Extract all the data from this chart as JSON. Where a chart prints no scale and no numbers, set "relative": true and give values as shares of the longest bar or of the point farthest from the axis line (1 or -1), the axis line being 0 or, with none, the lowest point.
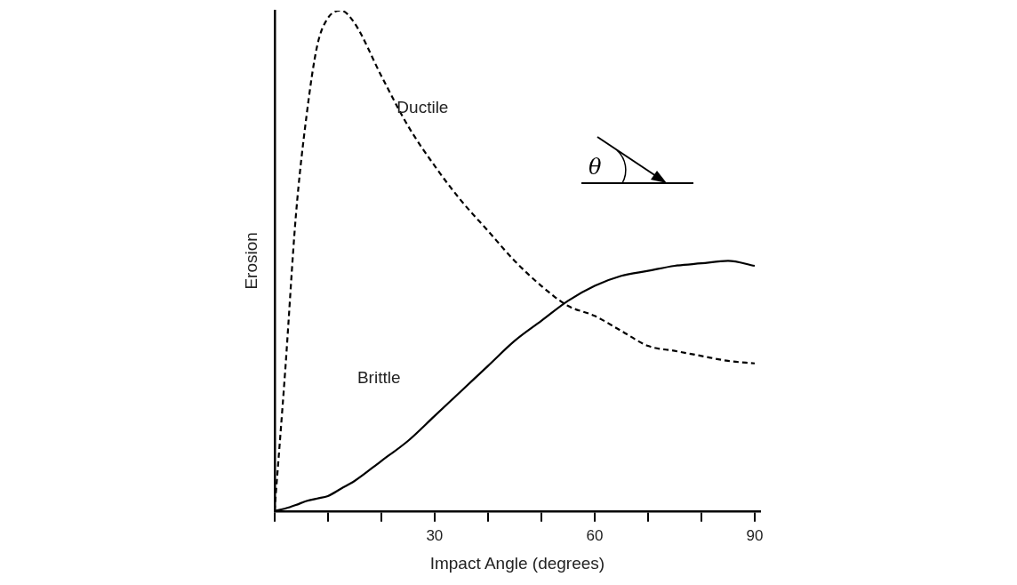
{
  "chart_data": {
    "type": "line",
    "relative": true,
    "xlabel": "Impact Angle (degrees)",
    "ylabel": "Erosion",
    "x": [
      0,
      2,
      4,
      6,
      8,
      10,
      12.5,
      15,
      20,
      25,
      30,
      35,
      40,
      45,
      50,
      55,
      60,
      65,
      70,
      75,
      80,
      85,
      90
    ],
    "xlim": [
      0,
      91
    ],
    "xticks": [
      {
        "value": 0,
        "label": null
      },
      {
        "value": 10,
        "label": null
      },
      {
        "value": 20,
        "label": null
      },
      30,
      {
        "value": 40,
        "label": null
      },
      {
        "value": 50,
        "label": null
      },
      60,
      {
        "value": 70,
        "label": null
      },
      {
        "value": 80,
        "label": null
      },
      90
    ],
    "series": [
      {
        "name": "Ductile",
        "color": "#000000",
        "line_style": "dashed",
        "values": [
          0,
          0.28,
          0.59,
          0.79,
          0.93,
          0.985,
          1,
          0.975,
          0.87,
          0.77,
          0.69,
          0.62,
          0.56,
          0.5,
          0.45,
          0.41,
          0.39,
          0.36,
          0.33,
          0.32,
          0.31,
          0.3,
          0.295
        ]
      },
      {
        "name": "Brittle",
        "color": "#000000",
        "line_style": "solid",
        "values": [
          0,
          0.005,
          0.012,
          0.02,
          0.025,
          0.03,
          0.045,
          0.06,
          0.1,
          0.14,
          0.19,
          0.24,
          0.29,
          0.34,
          0.38,
          0.42,
          0.45,
          0.47,
          0.48,
          0.49,
          0.495,
          0.5,
          0.49
        ]
      }
    ],
    "annotations": [
      "θ"
    ],
    "legend": false,
    "grid": false,
    "marker": "none"
  }
}
